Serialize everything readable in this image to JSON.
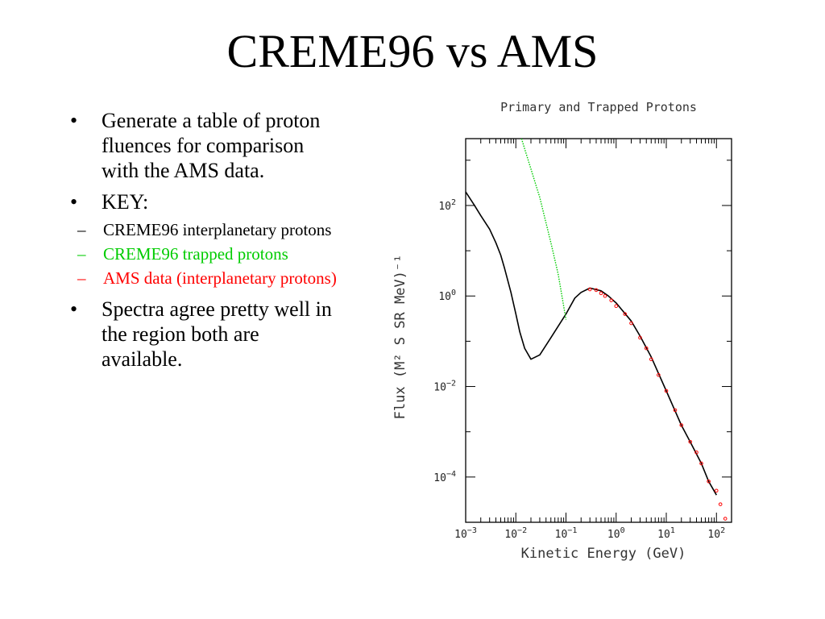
{
  "slide": {
    "title": "CREME96 vs AMS",
    "bullets": [
      {
        "text": "Generate a table of proton fluences for comparison with the AMS data."
      },
      {
        "text": "KEY:"
      },
      {
        "text": "Spectra agree pretty well in the region both are available."
      }
    ],
    "key": [
      {
        "text": "CREME96 interplanetary protons",
        "color": "#000000"
      },
      {
        "text": "CREME96 trapped protons",
        "color": "#00cc00"
      },
      {
        "text": "AMS data (interplanetary protons)",
        "color": "#ff0000"
      }
    ]
  },
  "chart_data": {
    "type": "line",
    "title": "Primary and Trapped Protons",
    "xlabel": "Kinetic Energy (GeV)",
    "ylabel": "Flux (M² S SR MeV)⁻¹",
    "xscale": "log",
    "yscale": "log",
    "xlim": [
      0.001,
      200
    ],
    "ylim": [
      1e-05,
      3000
    ],
    "xticks": [
      {
        "value": 0.001,
        "base": "10",
        "exp": "−3"
      },
      {
        "value": 0.01,
        "base": "10",
        "exp": "−2"
      },
      {
        "value": 0.1,
        "base": "10",
        "exp": "−1"
      },
      {
        "value": 1,
        "base": "10",
        "exp": "0"
      },
      {
        "value": 10,
        "base": "10",
        "exp": "1"
      },
      {
        "value": 100,
        "base": "10",
        "exp": "2"
      }
    ],
    "yticks": [
      {
        "value": 0.0001,
        "base": "10",
        "exp": "−4"
      },
      {
        "value": 0.01,
        "base": "10",
        "exp": "−2"
      },
      {
        "value": 1,
        "base": "10",
        "exp": "0"
      },
      {
        "value": 100,
        "base": "10",
        "exp": "2"
      }
    ],
    "grid": false,
    "series": [
      {
        "style": "line",
        "color": "#000000",
        "x": [
          0.001,
          0.0015,
          0.002,
          0.003,
          0.004,
          0.005,
          0.006,
          0.008,
          0.01,
          0.012,
          0.015,
          0.02,
          0.03,
          0.05,
          0.1,
          0.15,
          0.2,
          0.3,
          0.5,
          0.7,
          1,
          2,
          3,
          5,
          10,
          20,
          30,
          50,
          70,
          100
        ],
        "y": [
          200,
          100,
          60,
          30,
          15,
          8,
          4,
          1.2,
          0.4,
          0.16,
          0.07,
          0.04,
          0.05,
          0.12,
          0.4,
          0.9,
          1.2,
          1.5,
          1.3,
          1.0,
          0.7,
          0.28,
          0.13,
          0.045,
          0.008,
          0.0014,
          0.0006,
          0.0002,
          8e-05,
          4e-05
        ]
      },
      {
        "style": "dotted-line",
        "color": "#00cc00",
        "x": [
          0.013,
          0.03,
          0.05,
          0.07,
          0.1
        ],
        "y": [
          3000,
          150,
          15,
          3,
          0.3
        ]
      },
      {
        "style": "markers",
        "color": "#ff0000",
        "x": [
          0.3,
          0.4,
          0.5,
          0.6,
          0.8,
          1,
          1.5,
          2,
          3,
          4,
          5,
          7,
          10,
          15,
          20,
          30,
          40,
          50,
          70,
          100,
          120,
          150
        ],
        "y": [
          1.4,
          1.35,
          1.15,
          1.0,
          0.8,
          0.6,
          0.4,
          0.25,
          0.12,
          0.07,
          0.04,
          0.018,
          0.008,
          0.003,
          0.0014,
          0.0006,
          0.00035,
          0.0002,
          8e-05,
          5e-05,
          2.5e-05,
          1.2e-05
        ]
      }
    ]
  }
}
